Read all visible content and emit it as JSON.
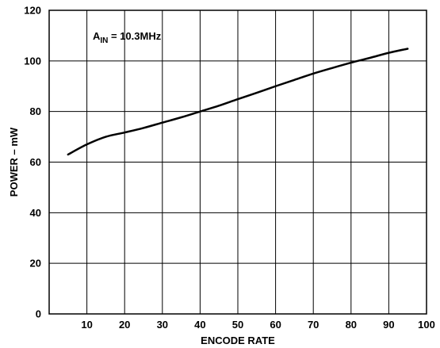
{
  "chart_data": {
    "type": "line",
    "title": "",
    "xlabel": "ENCODE RATE",
    "ylabel": "POWER – mW",
    "xlim": [
      0,
      100
    ],
    "ylim": [
      0,
      120
    ],
    "x_ticks": [
      10,
      20,
      30,
      40,
      50,
      60,
      70,
      80,
      90,
      100
    ],
    "y_ticks": [
      0,
      20,
      40,
      60,
      80,
      100,
      120
    ],
    "grid": true,
    "annotation": {
      "main": "A",
      "sub": "IN",
      "rest": " = 10.3MHz"
    },
    "series": [
      {
        "x": [
          5,
          10,
          15,
          20,
          25,
          30,
          35,
          40,
          45,
          50,
          55,
          60,
          65,
          70,
          75,
          80,
          85,
          90,
          95
        ],
        "y": [
          63,
          67,
          70,
          71.7,
          73.5,
          75.6,
          77.7,
          80,
          82.3,
          84.9,
          87.4,
          90,
          92.5,
          95,
          97.2,
          99.3,
          101.2,
          103.2,
          104.8
        ]
      }
    ]
  }
}
